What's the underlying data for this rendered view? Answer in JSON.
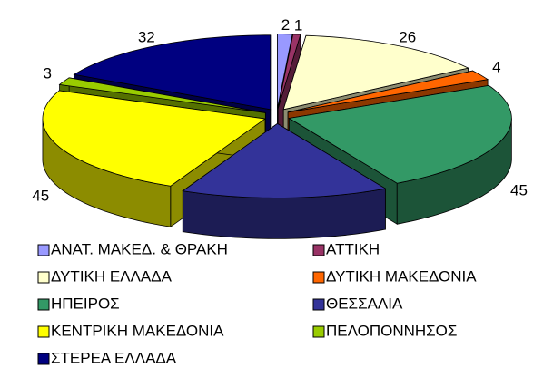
{
  "chart_data": {
    "type": "pie3d",
    "categories": [
      "ΑΝΑΤ. ΜΑΚΕΔ. & ΘΡΑΚΗ",
      "ΑΤΤΙΚΗ",
      "ΔΥΤΙΚΗ ΕΛΛΑΔΑ",
      "ΔΥΤΙΚΗ ΜΑΚΕΔΟΝΙΑ",
      "ΗΠΕΙΡΟΣ",
      "ΘΕΣΣΑΛΙΑ",
      "ΚΕΝΤΡΙΚΗ ΜΑΚΕΔΟΝΙΑ",
      "ΠΕΛΟΠΟΝΝΗΣΟΣ",
      "ΣΤΕΡΕΑ ΕΛΛΑΔΑ"
    ],
    "values": [
      2,
      1,
      26,
      4,
      45,
      28,
      45,
      3,
      32
    ],
    "value_labels": [
      "2",
      "1",
      "26",
      "4",
      "45",
      null,
      "45",
      "3",
      "32"
    ],
    "colors": [
      "#9999ff",
      "#993366",
      "#ffffcc",
      "#ff6600",
      "#339966",
      "#333399",
      "#ffff00",
      "#99cc00",
      "#000080"
    ]
  }
}
